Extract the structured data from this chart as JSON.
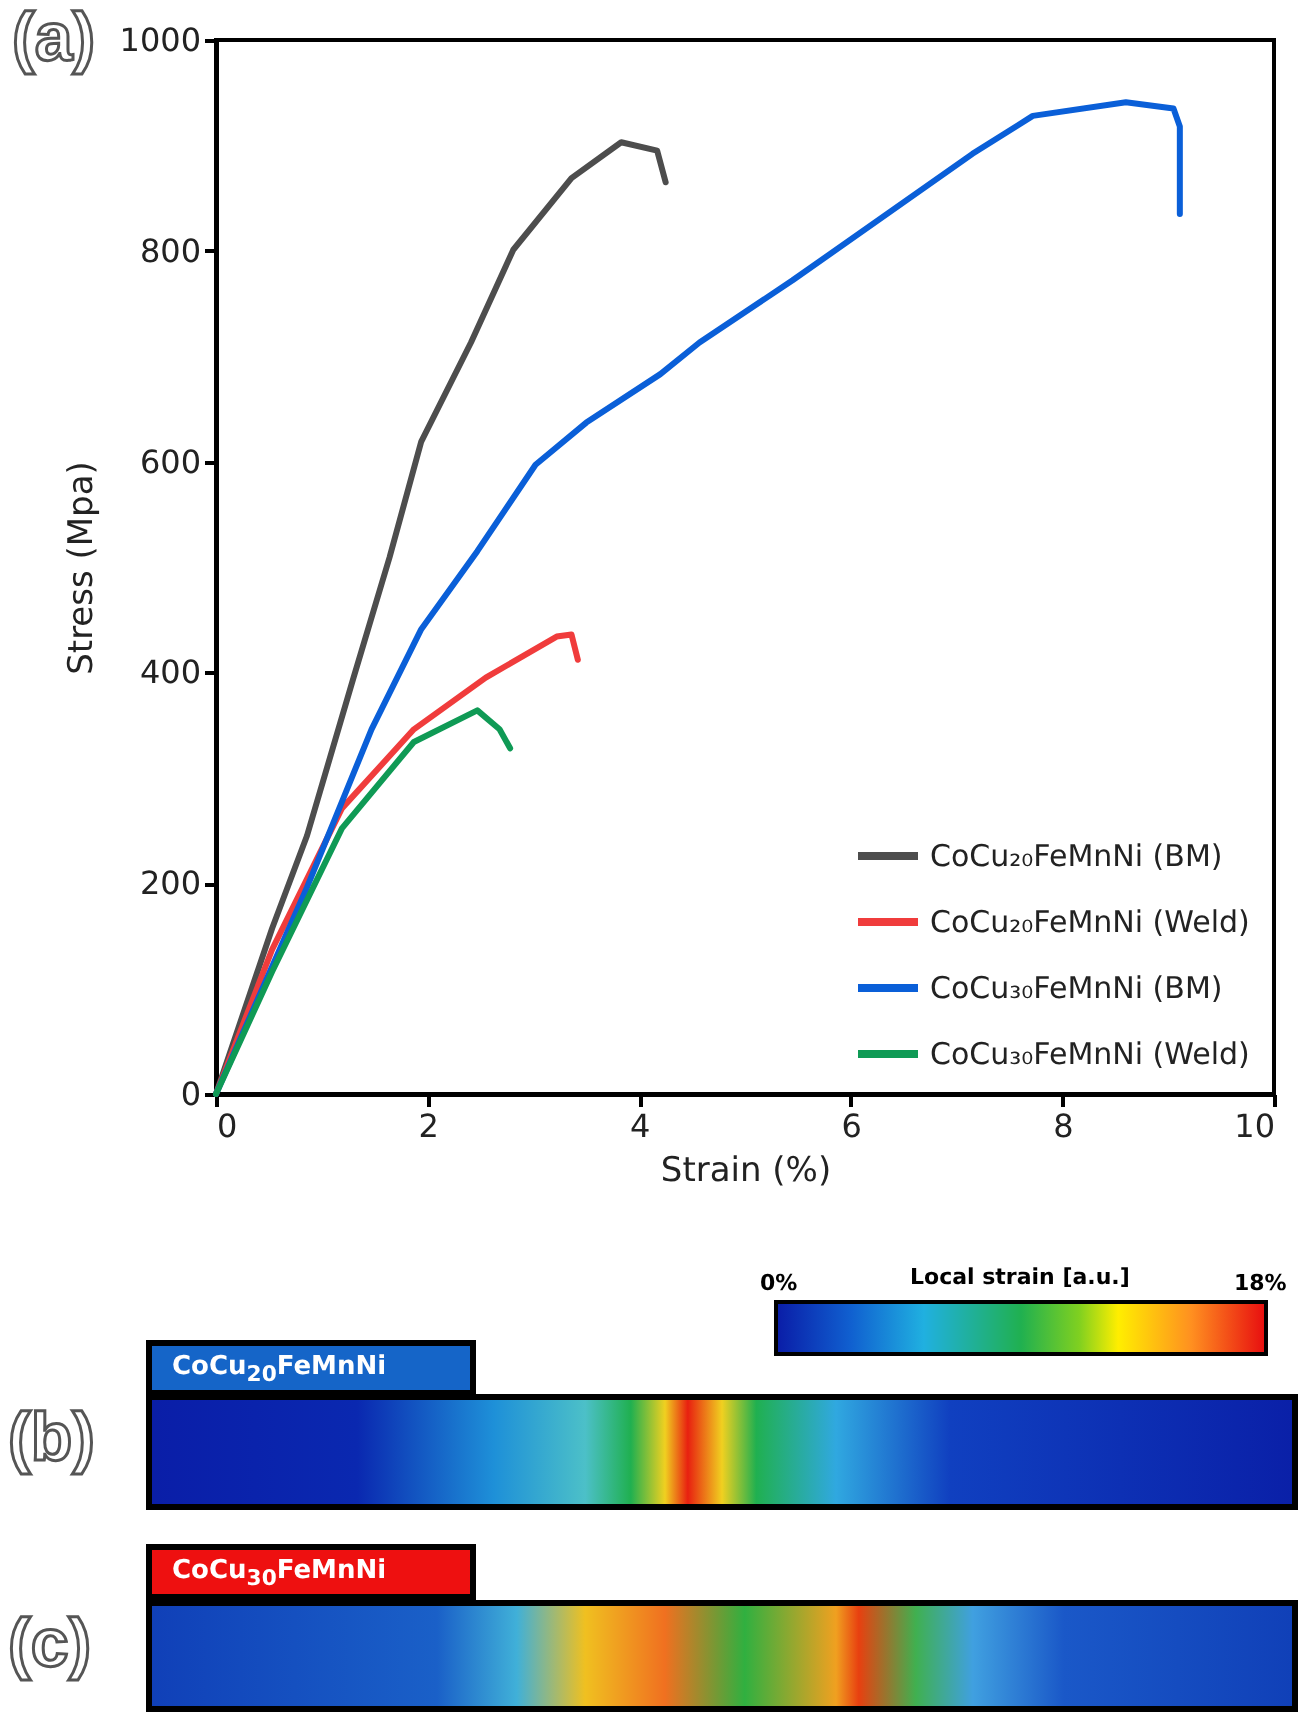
{
  "chart_data": {
    "type": "line",
    "xlabel": "Strain (%)",
    "ylabel": "Stress (Mpa)",
    "xlim": [
      0,
      10
    ],
    "ylim": [
      0,
      1000
    ],
    "xticks": [
      0,
      2,
      4,
      6,
      8,
      10
    ],
    "yticks": [
      0,
      200,
      400,
      600,
      800,
      1000
    ],
    "grid": false,
    "legend": "bottom right",
    "marker": "none",
    "line_style": "solid",
    "series": [
      {
        "name": "CoCu₂₀FeMnNi (BM)",
        "color": "#4d4d4d",
        "x": [
          0,
          0.53,
          0.86,
          1.3,
          1.64,
          1.94,
          2.41,
          2.81,
          3.36,
          3.83,
          4.17,
          4.25
        ],
        "values": [
          0,
          157,
          245,
          395,
          509,
          619,
          713,
          801,
          869,
          903,
          895,
          865
        ]
      },
      {
        "name": "CoCu₂₀FeMnNi (Weld)",
        "color": "#f03c3c",
        "x": [
          0,
          0.53,
          1.19,
          1.87,
          2.55,
          3.22,
          3.36,
          3.42
        ],
        "values": [
          0,
          137,
          271,
          346,
          395,
          434,
          436,
          412
        ]
      },
      {
        "name": "CoCu₃₀FeMnNi (BM)",
        "color": "#0a5fd8",
        "x": [
          0,
          0.86,
          1.47,
          1.94,
          2.47,
          3.02,
          3.5,
          4.2,
          4.57,
          5.45,
          7.15,
          7.72,
          8.6,
          9.05,
          9.11,
          9.11
        ],
        "values": [
          0,
          196,
          346,
          441,
          515,
          597,
          637,
          683,
          713,
          772,
          892,
          928,
          941,
          935,
          918,
          835
        ]
      },
      {
        "name": "CoCu₃₀FeMnNi (Weld)",
        "color": "#0f9a55",
        "x": [
          0,
          0.53,
          1.19,
          1.87,
          2.47,
          2.68,
          2.78
        ],
        "values": [
          0,
          116,
          252,
          334,
          364,
          346,
          328
        ]
      }
    ],
    "annotations": [
      "(a)",
      "(b)",
      "(c)",
      "CoCu$_{20}$FeMnNi",
      "CoCu$_{30}$FeMnNi",
      "Local strain [a.u.]",
      "0%",
      "18%"
    ]
  }
}
